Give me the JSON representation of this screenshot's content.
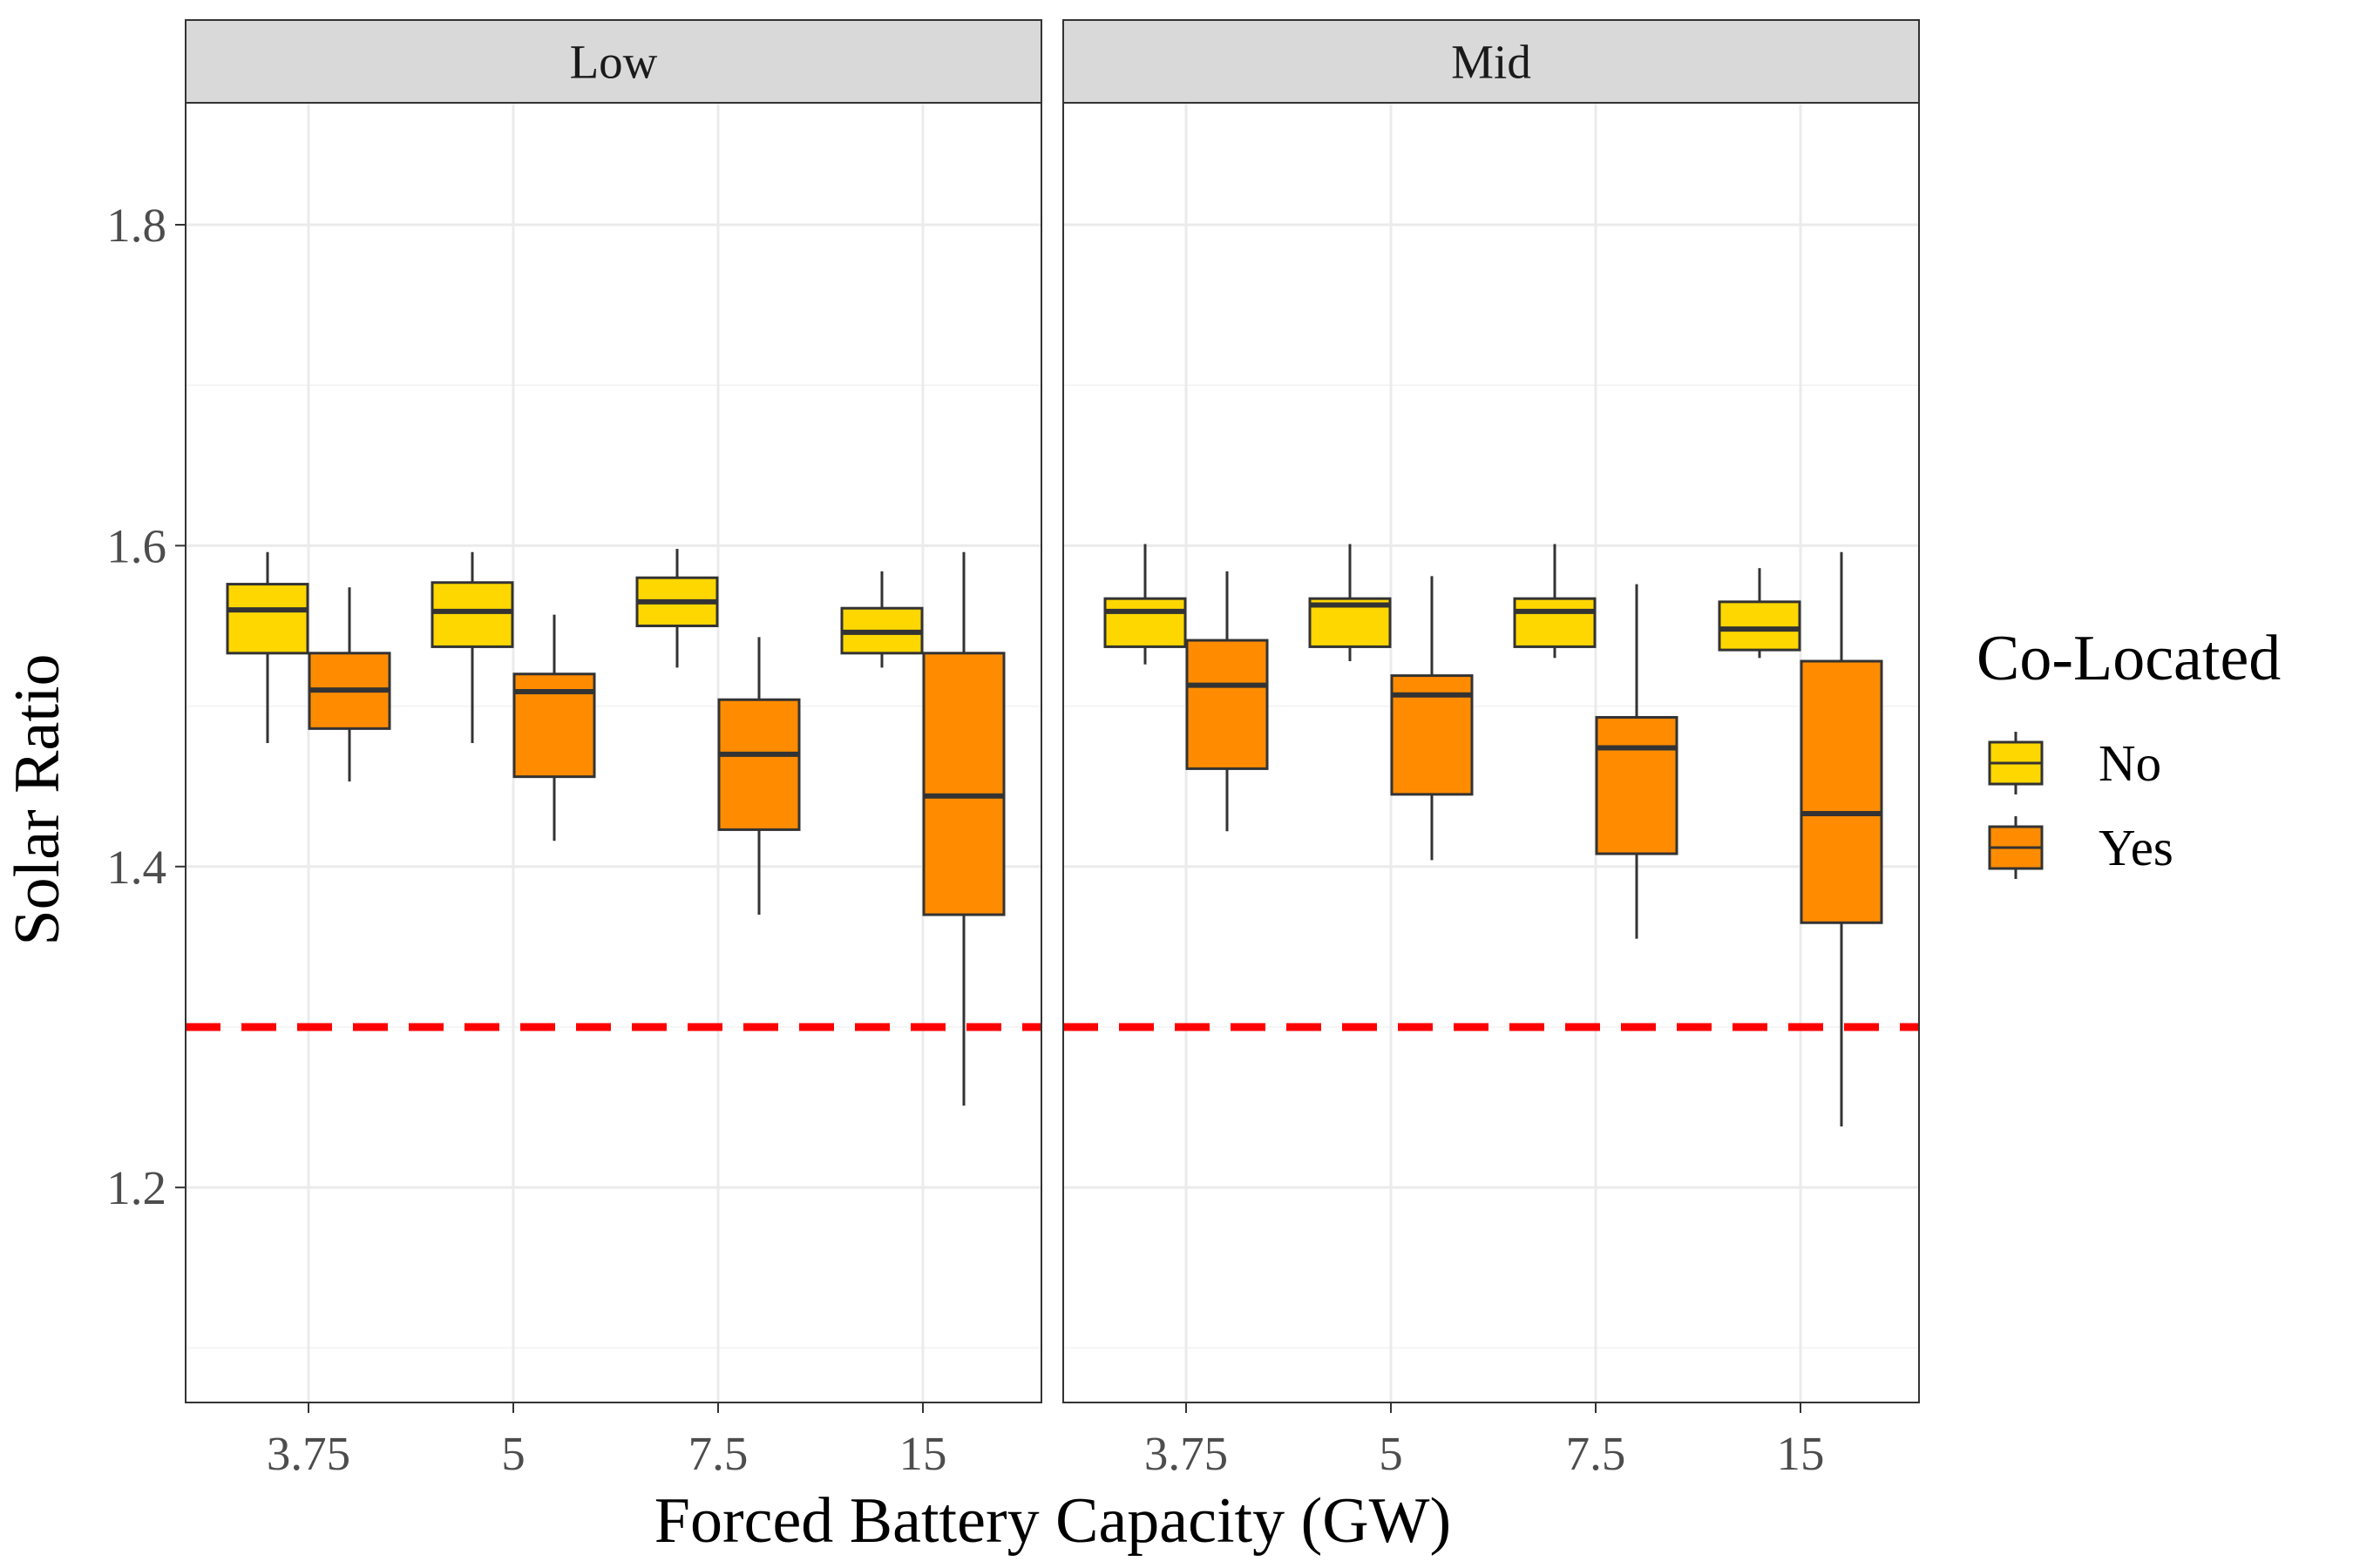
{
  "chart_data": {
    "type": "boxplot",
    "xlabel": "Forced Battery Capacity (GW)",
    "ylabel": "Solar Ratio",
    "ylim": [
      1.066,
      1.876
    ],
    "yticks": [
      1.2,
      1.4,
      1.6,
      1.8
    ],
    "categories": [
      "3.75",
      "5",
      "7.5",
      "15"
    ],
    "reference_line": {
      "y": 1.3,
      "color": "#ff0000",
      "style": "dashed"
    },
    "legend": {
      "title": "Co-Located",
      "position": "right",
      "items": [
        {
          "label": "No",
          "color": "#ffd700"
        },
        {
          "label": "Yes",
          "color": "#ff8c00"
        }
      ]
    },
    "grid": true,
    "facets": [
      {
        "label": "Low",
        "groups": [
          {
            "category": "3.75",
            "series": "No",
            "lower": 1.477,
            "q1": 1.533,
            "median": 1.56,
            "q3": 1.576,
            "upper": 1.596
          },
          {
            "category": "3.75",
            "series": "Yes",
            "lower": 1.453,
            "q1": 1.486,
            "median": 1.51,
            "q3": 1.533,
            "upper": 1.574
          },
          {
            "category": "5",
            "series": "No",
            "lower": 1.477,
            "q1": 1.537,
            "median": 1.559,
            "q3": 1.577,
            "upper": 1.596
          },
          {
            "category": "5",
            "series": "Yes",
            "lower": 1.416,
            "q1": 1.456,
            "median": 1.509,
            "q3": 1.52,
            "upper": 1.557
          },
          {
            "category": "7.5",
            "series": "No",
            "lower": 1.524,
            "q1": 1.55,
            "median": 1.565,
            "q3": 1.58,
            "upper": 1.598
          },
          {
            "category": "7.5",
            "series": "Yes",
            "lower": 1.37,
            "q1": 1.423,
            "median": 1.47,
            "q3": 1.504,
            "upper": 1.543
          },
          {
            "category": "15",
            "series": "No",
            "lower": 1.524,
            "q1": 1.533,
            "median": 1.546,
            "q3": 1.561,
            "upper": 1.584
          },
          {
            "category": "15",
            "series": "Yes",
            "lower": 1.251,
            "q1": 1.37,
            "median": 1.444,
            "q3": 1.533,
            "upper": 1.596
          }
        ]
      },
      {
        "label": "Mid",
        "groups": [
          {
            "category": "3.75",
            "series": "No",
            "lower": 1.526,
            "q1": 1.537,
            "median": 1.559,
            "q3": 1.567,
            "upper": 1.601
          },
          {
            "category": "3.75",
            "series": "Yes",
            "lower": 1.422,
            "q1": 1.461,
            "median": 1.513,
            "q3": 1.541,
            "upper": 1.584
          },
          {
            "category": "5",
            "series": "No",
            "lower": 1.528,
            "q1": 1.537,
            "median": 1.563,
            "q3": 1.567,
            "upper": 1.601
          },
          {
            "category": "5",
            "series": "Yes",
            "lower": 1.404,
            "q1": 1.445,
            "median": 1.507,
            "q3": 1.519,
            "upper": 1.581
          },
          {
            "category": "7.5",
            "series": "No",
            "lower": 1.53,
            "q1": 1.537,
            "median": 1.559,
            "q3": 1.567,
            "upper": 1.601
          },
          {
            "category": "7.5",
            "series": "Yes",
            "lower": 1.355,
            "q1": 1.408,
            "median": 1.474,
            "q3": 1.493,
            "upper": 1.576
          },
          {
            "category": "15",
            "series": "No",
            "lower": 1.53,
            "q1": 1.535,
            "median": 1.548,
            "q3": 1.565,
            "upper": 1.586
          },
          {
            "category": "15",
            "series": "Yes",
            "lower": 1.238,
            "q1": 1.365,
            "median": 1.433,
            "q3": 1.528,
            "upper": 1.596
          }
        ]
      }
    ]
  }
}
